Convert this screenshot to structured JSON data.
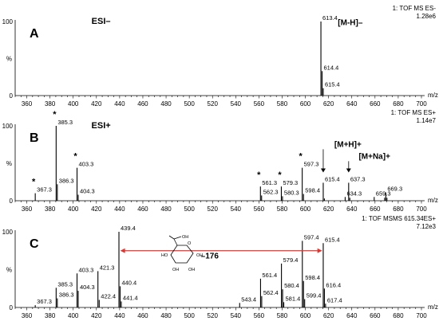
{
  "chart_data": [
    {
      "type": "bar",
      "panel_label": "A",
      "mode_label": "ESI–",
      "header_line1": "1: TOF MS ES-",
      "header_line2": "1.28e6",
      "y_axis_top": "100",
      "y_axis_mid": "%",
      "y_axis_bottom": "0",
      "xlabel": "m/z",
      "xlim": [
        350,
        700
      ],
      "xticks": [
        "360",
        "380",
        "400",
        "420",
        "440",
        "460",
        "480",
        "500",
        "520",
        "540",
        "560",
        "580",
        "600",
        "620",
        "640",
        "660",
        "680",
        "700"
      ],
      "ylim": [
        0,
        100
      ],
      "peaks": [
        {
          "mz": 613.4,
          "intensity": 100,
          "label": "613.4"
        },
        {
          "mz": 614.4,
          "intensity": 33,
          "label": "614.4"
        },
        {
          "mz": 615.4,
          "intensity": 10,
          "label": "615.4"
        }
      ],
      "annotations": [
        {
          "text": "[M-H]–",
          "mz": 628,
          "y": 95
        }
      ]
    },
    {
      "type": "bar",
      "panel_label": "B",
      "mode_label": "ESI+",
      "header_line1": "1: TOF MS ES+",
      "header_line2": "1.14e7",
      "y_axis_top": "100",
      "y_axis_mid": "%",
      "y_axis_bottom": "0",
      "xlabel": "m/z",
      "xlim": [
        350,
        700
      ],
      "xticks": [
        "360",
        "380",
        "400",
        "420",
        "440",
        "460",
        "480",
        "500",
        "520",
        "540",
        "560",
        "580",
        "600",
        "620",
        "640",
        "660",
        "680",
        "700"
      ],
      "ylim": [
        0,
        100
      ],
      "peaks": [
        {
          "mz": 367.3,
          "intensity": 10,
          "label": "367.3",
          "star": true
        },
        {
          "mz": 385.3,
          "intensity": 100,
          "label": "385.3",
          "star": true
        },
        {
          "mz": 386.3,
          "intensity": 22,
          "label": "386.3"
        },
        {
          "mz": 403.3,
          "intensity": 44,
          "label": "403.3",
          "star": true
        },
        {
          "mz": 404.3,
          "intensity": 8,
          "label": "404.3"
        },
        {
          "mz": 561.3,
          "intensity": 19,
          "label": "561.3",
          "star": true
        },
        {
          "mz": 562.3,
          "intensity": 7,
          "label": "562.3"
        },
        {
          "mz": 579.3,
          "intensity": 19,
          "label": "579.3",
          "star": true
        },
        {
          "mz": 580.3,
          "intensity": 6,
          "label": "580.3"
        },
        {
          "mz": 597.3,
          "intensity": 44,
          "label": "597.3",
          "star": true
        },
        {
          "mz": 598.4,
          "intensity": 9,
          "label": "598.4"
        },
        {
          "mz": 615.4,
          "intensity": 24,
          "label": "615.4"
        },
        {
          "mz": 634.3,
          "intensity": 5,
          "label": "634.3"
        },
        {
          "mz": 637.3,
          "intensity": 24,
          "label": "637.3"
        },
        {
          "mz": 659.3,
          "intensity": 5,
          "label": "659.3"
        },
        {
          "mz": 669.3,
          "intensity": 11,
          "label": "669.3"
        },
        {
          "mz": 638.3,
          "intensity": 4
        },
        {
          "mz": 616.4,
          "intensity": 3
        },
        {
          "mz": 668.3,
          "intensity": 4
        },
        {
          "mz": 670.3,
          "intensity": 4
        }
      ],
      "annotations": [
        {
          "text": "[M+H]+",
          "mz": 625,
          "y": 72,
          "arrow_to_mz": 615.4
        },
        {
          "text": "[M+Na]+",
          "mz": 646,
          "y": 56,
          "arrow_to_mz": 637.3
        }
      ]
    },
    {
      "type": "bar",
      "panel_label": "C",
      "header_line1": "1: TOF MSMS 615.34ES+",
      "header_line2": "7.12e3",
      "y_axis_top": "100",
      "y_axis_mid": "%",
      "y_axis_bottom": "0",
      "xlabel": "m/z",
      "xlim": [
        350,
        700
      ],
      "xticks": [
        "360",
        "380",
        "400",
        "420",
        "440",
        "460",
        "480",
        "500",
        "520",
        "540",
        "560",
        "580",
        "600",
        "620",
        "640",
        "660",
        "680",
        "700"
      ],
      "ylim": [
        0,
        100
      ],
      "peaks": [
        {
          "mz": 367.3,
          "intensity": 3,
          "label": "367.3"
        },
        {
          "mz": 385.3,
          "intensity": 26,
          "label": "385.3"
        },
        {
          "mz": 386.3,
          "intensity": 12,
          "label": "386.3"
        },
        {
          "mz": 403.3,
          "intensity": 45,
          "label": "403.3"
        },
        {
          "mz": 404.3,
          "intensity": 22,
          "label": "404.3"
        },
        {
          "mz": 421.3,
          "intensity": 48,
          "label": "421.3"
        },
        {
          "mz": 422.4,
          "intensity": 10,
          "label": "422.4"
        },
        {
          "mz": 439.4,
          "intensity": 100,
          "label": "439.4"
        },
        {
          "mz": 440.4,
          "intensity": 28,
          "label": "440.4"
        },
        {
          "mz": 441.4,
          "intensity": 8,
          "label": "441.4"
        },
        {
          "mz": 543.4,
          "intensity": 6,
          "label": "543.4"
        },
        {
          "mz": 561.4,
          "intensity": 38,
          "label": "561.4"
        },
        {
          "mz": 562.4,
          "intensity": 15,
          "label": "562.4"
        },
        {
          "mz": 579.4,
          "intensity": 58,
          "label": "579.4"
        },
        {
          "mz": 580.4,
          "intensity": 24,
          "label": "580.4"
        },
        {
          "mz": 581.4,
          "intensity": 7,
          "label": "581.4"
        },
        {
          "mz": 597.4,
          "intensity": 88,
          "label": "597.4"
        },
        {
          "mz": 598.4,
          "intensity": 35,
          "label": "598.4"
        },
        {
          "mz": 599.4,
          "intensity": 11,
          "label": "599.4"
        },
        {
          "mz": 615.4,
          "intensity": 85,
          "label": "615.4"
        },
        {
          "mz": 616.4,
          "intensity": 25,
          "label": "616.4"
        },
        {
          "mz": 617.4,
          "intensity": 5,
          "label": "617.4"
        }
      ],
      "annotations": [
        {
          "text": "–176",
          "mz": 510,
          "y": 65
        }
      ],
      "double_arrow": {
        "from_mz": 440.5,
        "to_mz": 614.5,
        "y": 75,
        "color": "#e8322e"
      },
      "structure_ring_labels": [
        "OH",
        "O",
        "HO",
        "OH",
        "OH",
        "OH"
      ]
    }
  ]
}
